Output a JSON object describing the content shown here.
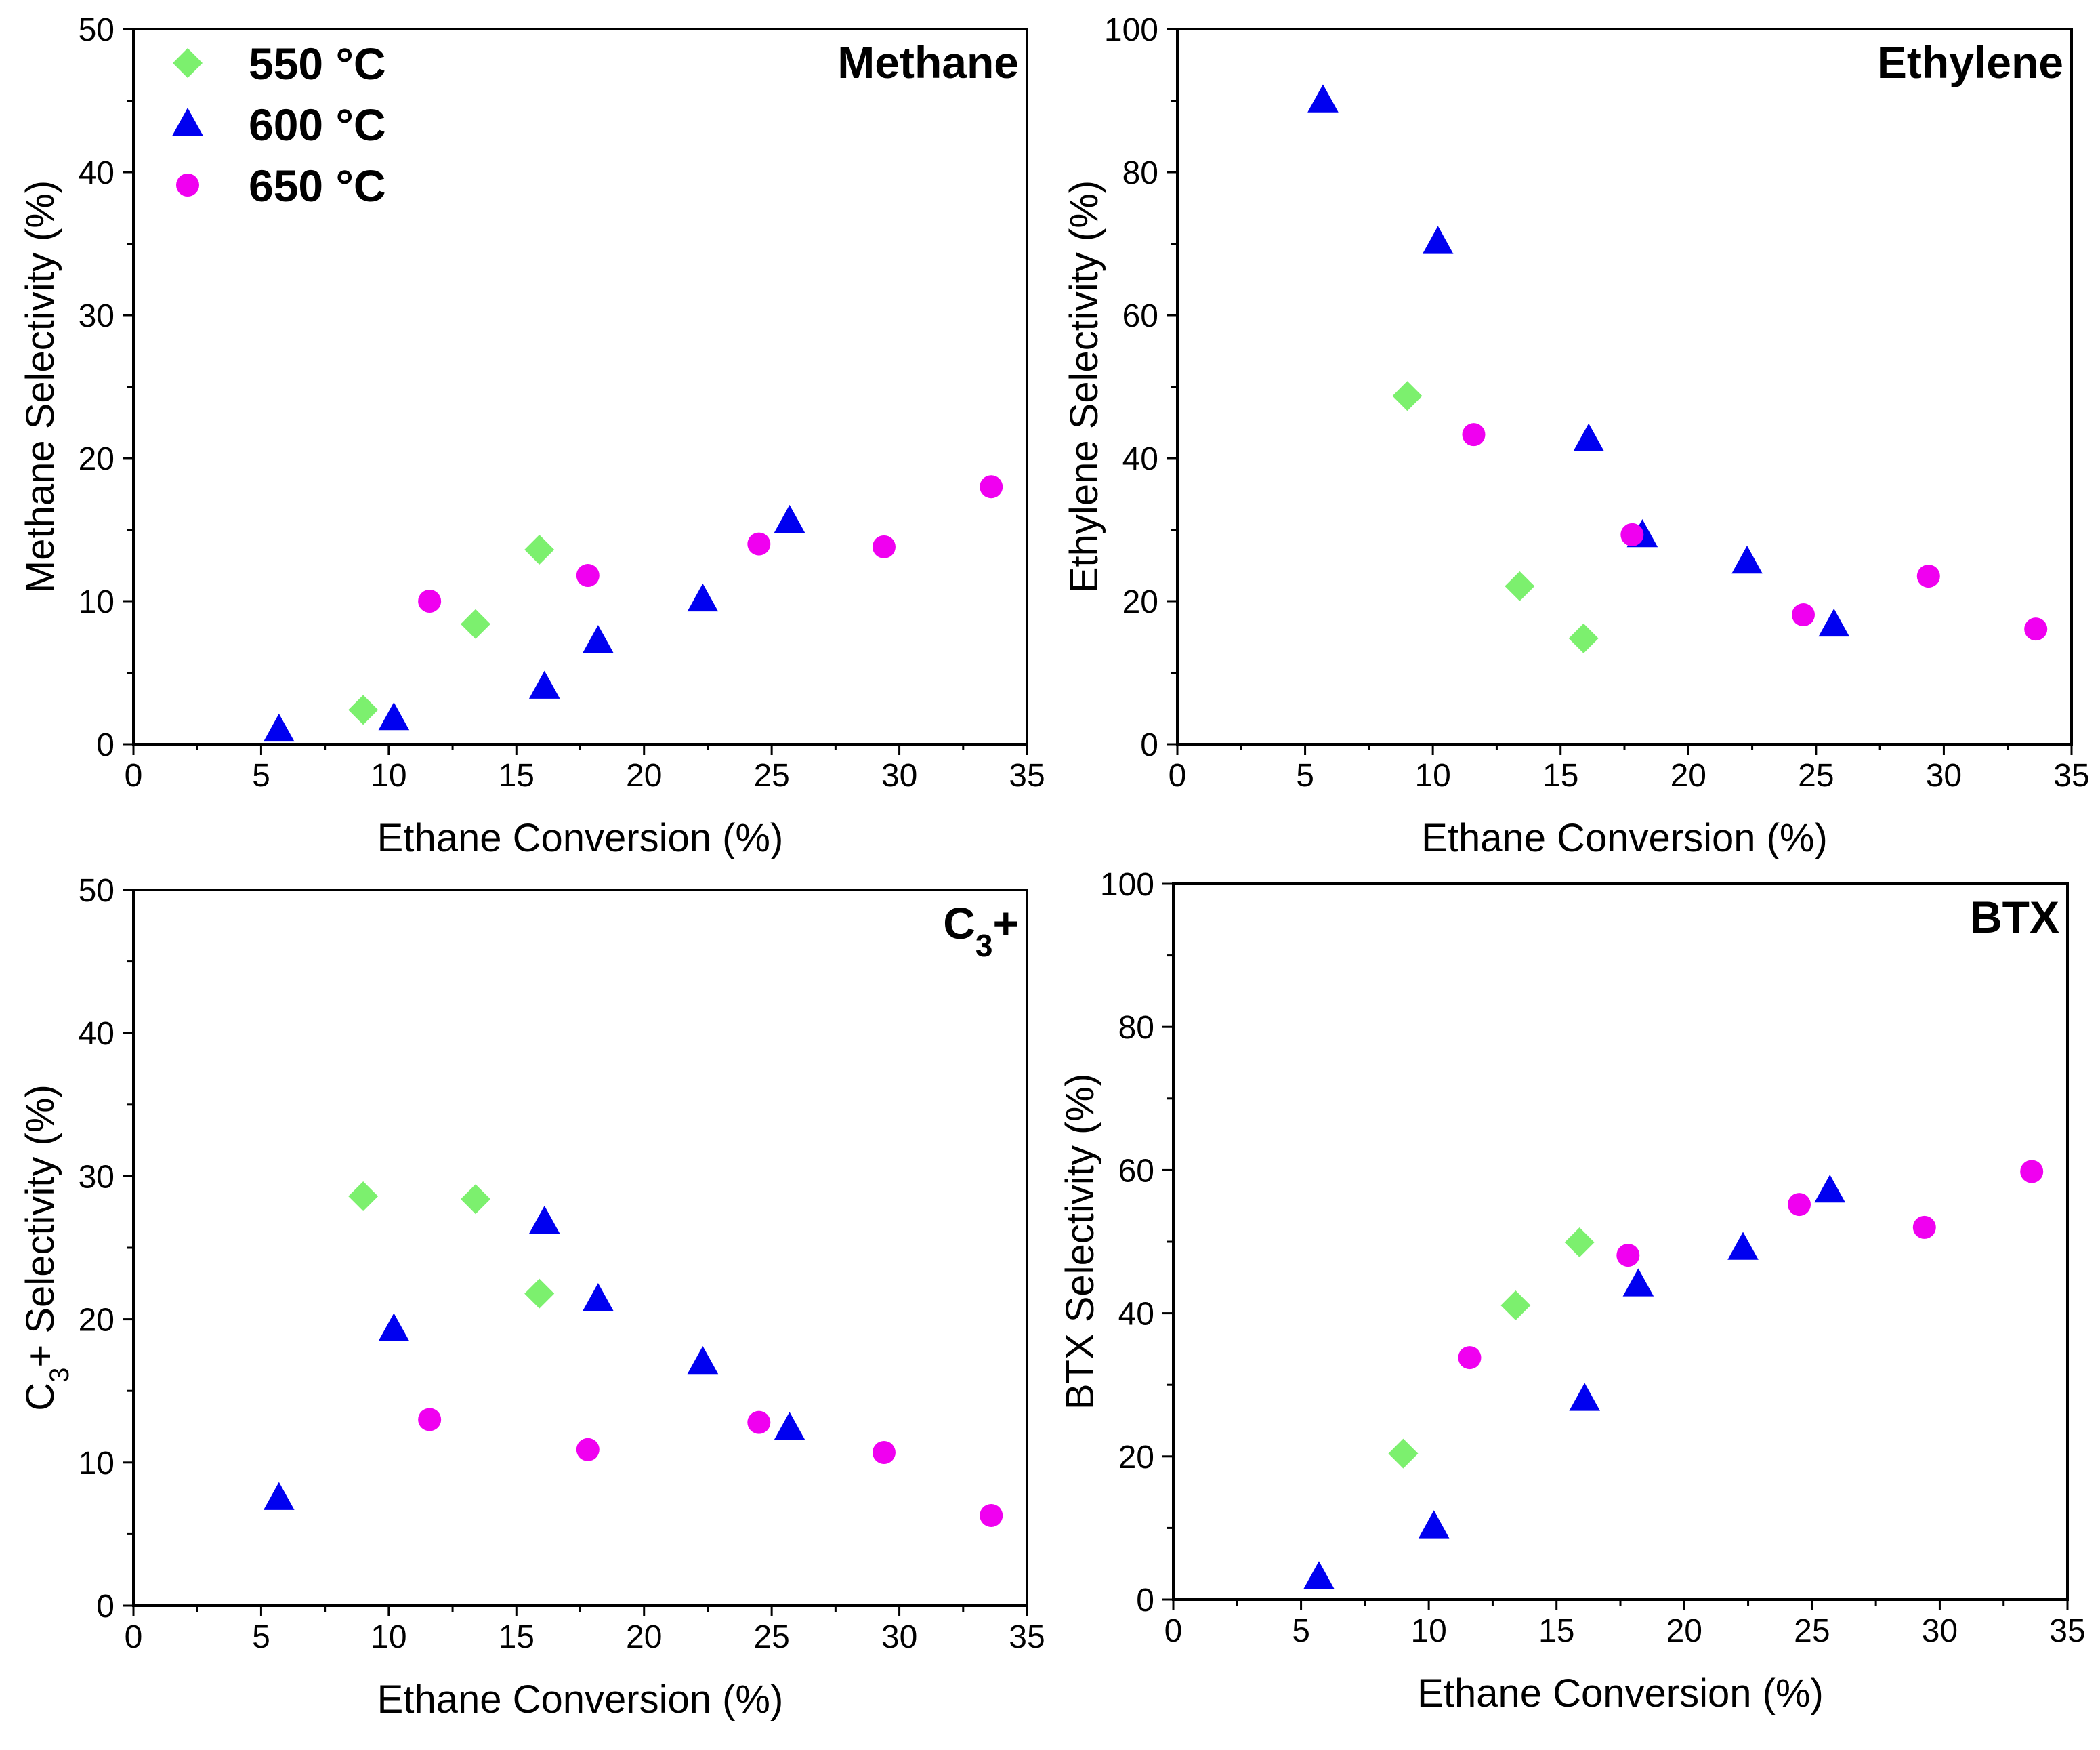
{
  "legend": [
    {
      "label": "550 °C",
      "color": "#7CF06E",
      "marker": "diamond"
    },
    {
      "label": "600 °C",
      "color": "#0000F0",
      "marker": "triangle"
    },
    {
      "label": "650 °C",
      "color": "#F000F0",
      "marker": "circle"
    }
  ],
  "chart_data": [
    {
      "type": "scatter",
      "title": "Methane",
      "xlabel": "Ethane Conversion (%)",
      "ylabel": "Methane Selectivity (%)",
      "xlim": [
        0,
        35
      ],
      "ylim": [
        0,
        50
      ],
      "xticks": [
        "0",
        "5",
        "10",
        "15",
        "20",
        "25",
        "30",
        "35"
      ],
      "yticks": [
        "0",
        "10",
        "20",
        "30",
        "40",
        "50"
      ],
      "series": [
        {
          "name": "550 °C",
          "points": [
            [
              9.0,
              2.4
            ],
            [
              13.4,
              8.4
            ],
            [
              15.9,
              13.6
            ]
          ]
        },
        {
          "name": "600 °C",
          "points": [
            [
              5.7,
              1.0
            ],
            [
              10.2,
              1.8
            ],
            [
              16.1,
              4.0
            ],
            [
              18.2,
              7.2
            ],
            [
              22.3,
              10.1
            ],
            [
              25.7,
              15.6
            ]
          ]
        },
        {
          "name": "650 °C",
          "points": [
            [
              11.6,
              10.0
            ],
            [
              17.8,
              11.8
            ],
            [
              24.5,
              14.0
            ],
            [
              29.4,
              13.8
            ],
            [
              33.6,
              18.0
            ]
          ]
        }
      ]
    },
    {
      "type": "scatter",
      "title": "Ethylene",
      "xlabel": "Ethane Conversion (%)",
      "ylabel": "Ethylene Selectivity (%)",
      "xlim": [
        0,
        35
      ],
      "ylim": [
        0,
        100
      ],
      "xticks": [
        "0",
        "5",
        "10",
        "15",
        "20",
        "25",
        "30",
        "35"
      ],
      "yticks": [
        "0",
        "20",
        "40",
        "60",
        "80",
        "100"
      ],
      "series": [
        {
          "name": "550 °C",
          "points": [
            [
              9.0,
              48.7
            ],
            [
              13.4,
              22.1
            ],
            [
              15.9,
              14.8
            ]
          ]
        },
        {
          "name": "600 °C",
          "points": [
            [
              5.7,
              90.0
            ],
            [
              10.2,
              70.2
            ],
            [
              16.1,
              42.6
            ],
            [
              18.2,
              29.2
            ],
            [
              22.3,
              25.5
            ],
            [
              25.7,
              16.7
            ]
          ]
        },
        {
          "name": "650 °C",
          "points": [
            [
              11.6,
              43.3
            ],
            [
              17.8,
              29.3
            ],
            [
              24.5,
              18.1
            ],
            [
              29.4,
              23.5
            ],
            [
              33.6,
              16.1
            ]
          ]
        }
      ]
    },
    {
      "type": "scatter",
      "title": "C",
      "title_sub": "3",
      "title_suffix": "+",
      "xlabel": "Ethane Conversion (%)",
      "ylabel": "C",
      "ylabel_sub": "3",
      "ylabel_suffix": "+ Selectivity (%)",
      "xlim": [
        0,
        35
      ],
      "ylim": [
        0,
        50
      ],
      "xticks": [
        "0",
        "5",
        "10",
        "15",
        "20",
        "25",
        "30",
        "35"
      ],
      "yticks": [
        "0",
        "10",
        "20",
        "30",
        "40",
        "50"
      ],
      "series": [
        {
          "name": "550 °C",
          "points": [
            [
              9.0,
              28.6
            ],
            [
              13.4,
              28.4
            ],
            [
              15.9,
              21.8
            ]
          ]
        },
        {
          "name": "600 °C",
          "points": [
            [
              5.7,
              7.5
            ],
            [
              10.2,
              19.3
            ],
            [
              16.1,
              26.8
            ],
            [
              18.2,
              21.4
            ],
            [
              22.3,
              17.0
            ],
            [
              25.7,
              12.4
            ]
          ]
        },
        {
          "name": "650 °C",
          "points": [
            [
              11.6,
              13.0
            ],
            [
              17.8,
              10.9
            ],
            [
              24.5,
              12.8
            ],
            [
              29.4,
              10.7
            ],
            [
              33.6,
              6.3
            ]
          ]
        }
      ]
    },
    {
      "type": "scatter",
      "title": "BTX",
      "xlabel": "Ethane Conversion (%)",
      "ylabel": "BTX Selectivity (%)",
      "xlim": [
        0,
        35
      ],
      "ylim": [
        0,
        100
      ],
      "xticks": [
        "0",
        "5",
        "10",
        "15",
        "20",
        "25",
        "30",
        "35"
      ],
      "yticks": [
        "0",
        "20",
        "40",
        "60",
        "80",
        "100"
      ],
      "series": [
        {
          "name": "550 °C",
          "points": [
            [
              9.0,
              20.4
            ],
            [
              13.4,
              41.1
            ],
            [
              15.9,
              49.9
            ]
          ]
        },
        {
          "name": "600 °C",
          "points": [
            [
              5.7,
              3.1
            ],
            [
              10.2,
              10.2
            ],
            [
              16.1,
              28.0
            ],
            [
              18.2,
              44.0
            ],
            [
              22.3,
              49.1
            ],
            [
              25.7,
              57.1
            ]
          ]
        },
        {
          "name": "650 °C",
          "points": [
            [
              11.6,
              33.8
            ],
            [
              17.8,
              48.1
            ],
            [
              24.5,
              55.2
            ],
            [
              29.4,
              52.0
            ],
            [
              33.6,
              59.8
            ]
          ]
        }
      ]
    }
  ]
}
